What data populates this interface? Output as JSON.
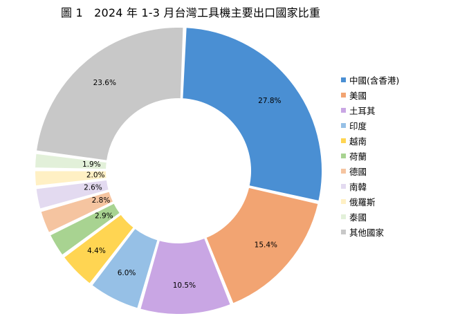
{
  "chart_data": {
    "type": "pie",
    "variant": "donut",
    "title": "圖 1　2024 年 1-3 月台灣工具機主要出口國家比重",
    "legend_position": "right",
    "slices": [
      {
        "label": "中國(含香港)",
        "value": 27.8,
        "value_label": "27.8%",
        "color": "#4A8FD3"
      },
      {
        "label": "美國",
        "value": 15.4,
        "value_label": "15.4%",
        "color": "#F2A472"
      },
      {
        "label": "土耳其",
        "value": 10.5,
        "value_label": "10.5%",
        "color": "#C9A6E4"
      },
      {
        "label": "印度",
        "value": 6.0,
        "value_label": "6.0%",
        "color": "#96C0E6"
      },
      {
        "label": "越南",
        "value": 4.4,
        "value_label": "4.4%",
        "color": "#FFD552"
      },
      {
        "label": "荷蘭",
        "value": 2.9,
        "value_label": "2.9%",
        "color": "#A8D391"
      },
      {
        "label": "德國",
        "value": 2.8,
        "value_label": "2.8%",
        "color": "#F5C4A0"
      },
      {
        "label": "南韓",
        "value": 2.6,
        "value_label": "2.6%",
        "color": "#E3DAF0"
      },
      {
        "label": "俄羅斯",
        "value": 2.0,
        "value_label": "2.0%",
        "color": "#FFF0C4"
      },
      {
        "label": "泰國",
        "value": 1.9,
        "value_label": "1.9%",
        "color": "#E2F0D9"
      },
      {
        "label": "其他國家",
        "value": 23.6,
        "value_label": "23.6%",
        "color": "#C8C8C8"
      }
    ]
  }
}
